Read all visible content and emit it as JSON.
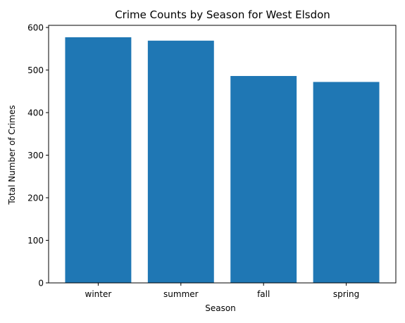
{
  "chart_data": {
    "type": "bar",
    "title": "Crime Counts by Season for West Elsdon",
    "xlabel": "Season",
    "ylabel": "Total Number of Crimes",
    "categories": [
      "winter",
      "summer",
      "fall",
      "spring"
    ],
    "values": [
      577,
      569,
      486,
      472
    ],
    "ylim": [
      0,
      605
    ],
    "yticks": [
      0,
      100,
      200,
      300,
      400,
      500,
      600
    ],
    "bar_color": "#1f77b4",
    "grid": false,
    "legend": "none"
  }
}
